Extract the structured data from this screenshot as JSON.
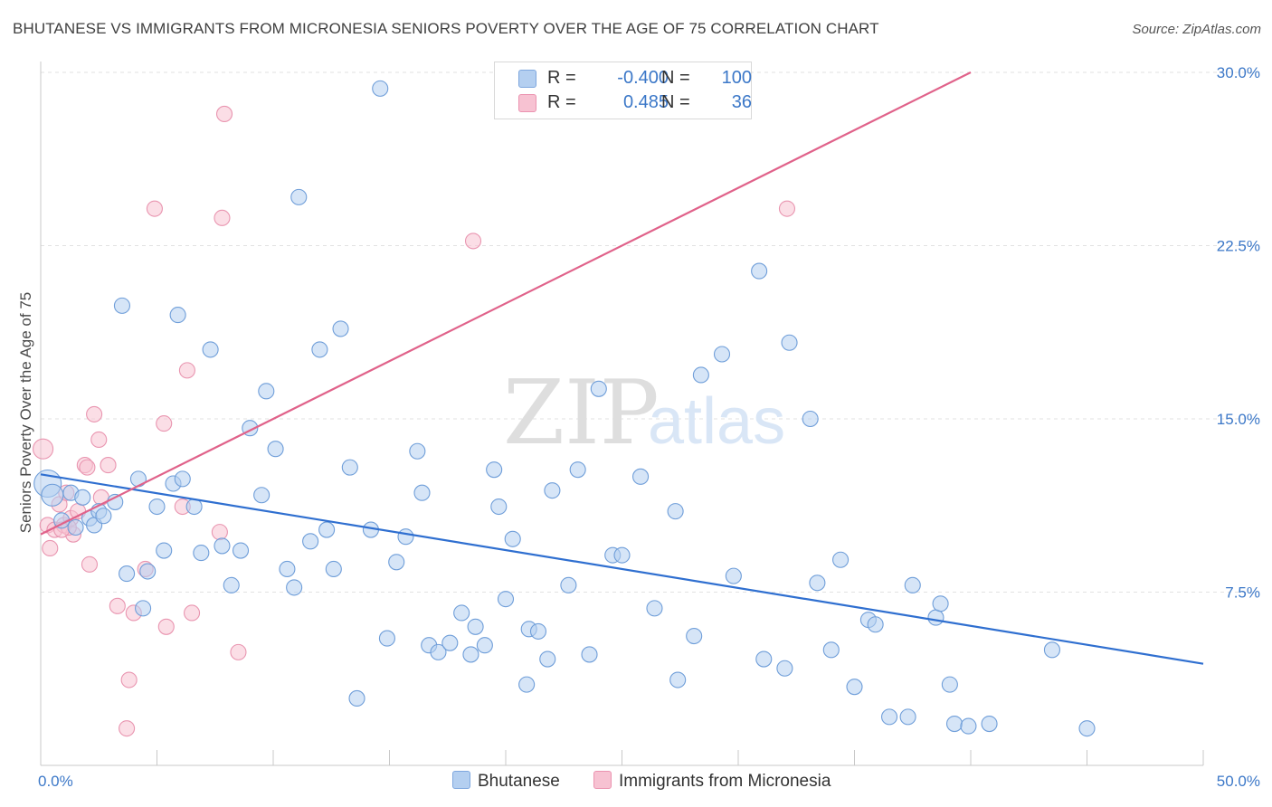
{
  "title": "BHUTANESE VS IMMIGRANTS FROM MICRONESIA SENIORS POVERTY OVER THE AGE OF 75 CORRELATION CHART",
  "source": "Source: ZipAtlas.com",
  "watermark": {
    "zip": "ZIP",
    "atlas": "atlas"
  },
  "colors": {
    "blue": "#3c78d8",
    "blue_fill": "#b4cff0",
    "pink": "#e0628a",
    "pink_fill": "#f7c2d2",
    "tick": "#3c78c8"
  },
  "legend_top": {
    "rows": [
      {
        "r_label": "R =",
        "r_value": "-0.400",
        "n_label": "N =",
        "n_value": "100"
      },
      {
        "r_label": "R =",
        "r_value": "0.485",
        "n_label": "N =",
        "n_value": "36"
      }
    ]
  },
  "legend_bottom": {
    "series1": "Bhutanese",
    "series2": "Immigrants from Micronesia"
  },
  "chart_data": {
    "type": "scatter",
    "title": "BHUTANESE VS IMMIGRANTS FROM MICRONESIA SENIORS POVERTY OVER THE AGE OF 75 CORRELATION CHART",
    "xlabel": "",
    "ylabel": "Seniors Poverty Over the Age of 75",
    "xlim": [
      0,
      50
    ],
    "ylim": [
      0,
      30
    ],
    "x_tick_labels": [
      "0.0%",
      "50.0%"
    ],
    "y_ticks": [
      7.5,
      15.0,
      22.5,
      30.0
    ],
    "y_tick_labels": [
      "7.5%",
      "15.0%",
      "22.5%",
      "30.0%"
    ],
    "grid": "horizontal dashed",
    "legend_placement": "top-center and bottom",
    "series": [
      {
        "name": "Bhutanese",
        "color": "#3c78d8",
        "R": -0.4,
        "N": 100,
        "trend": {
          "x": [
            0,
            50
          ],
          "y": [
            12.6,
            4.4
          ]
        },
        "points": [
          [
            0.3,
            12.2
          ],
          [
            0.5,
            11.7
          ],
          [
            0.9,
            10.6
          ],
          [
            1.3,
            11.8
          ],
          [
            1.5,
            10.3
          ],
          [
            1.8,
            11.6
          ],
          [
            2.1,
            10.7
          ],
          [
            2.3,
            10.4
          ],
          [
            2.5,
            11.0
          ],
          [
            2.7,
            10.8
          ],
          [
            3.2,
            11.4
          ],
          [
            3.5,
            19.9
          ],
          [
            3.7,
            8.3
          ],
          [
            4.2,
            12.4
          ],
          [
            4.4,
            6.8
          ],
          [
            4.6,
            8.4
          ],
          [
            5.0,
            11.2
          ],
          [
            5.3,
            9.3
          ],
          [
            5.7,
            12.2
          ],
          [
            5.9,
            19.5
          ],
          [
            6.1,
            12.4
          ],
          [
            6.6,
            11.2
          ],
          [
            6.9,
            9.2
          ],
          [
            7.3,
            18.0
          ],
          [
            7.8,
            9.5
          ],
          [
            8.2,
            7.8
          ],
          [
            8.6,
            9.3
          ],
          [
            9.0,
            14.6
          ],
          [
            9.5,
            11.7
          ],
          [
            9.7,
            16.2
          ],
          [
            10.1,
            13.7
          ],
          [
            10.6,
            8.5
          ],
          [
            10.9,
            7.7
          ],
          [
            11.1,
            24.6
          ],
          [
            11.6,
            9.7
          ],
          [
            12.0,
            18.0
          ],
          [
            12.3,
            10.2
          ],
          [
            12.6,
            8.5
          ],
          [
            12.9,
            18.9
          ],
          [
            13.3,
            12.9
          ],
          [
            13.6,
            2.9
          ],
          [
            14.2,
            10.2
          ],
          [
            14.6,
            29.3
          ],
          [
            14.9,
            5.5
          ],
          [
            15.3,
            8.8
          ],
          [
            15.7,
            9.9
          ],
          [
            16.2,
            13.6
          ],
          [
            16.4,
            11.8
          ],
          [
            16.7,
            5.2
          ],
          [
            17.1,
            4.9
          ],
          [
            17.6,
            5.3
          ],
          [
            18.1,
            6.6
          ],
          [
            18.5,
            4.8
          ],
          [
            18.7,
            6.0
          ],
          [
            19.1,
            5.2
          ],
          [
            19.5,
            12.8
          ],
          [
            19.7,
            11.2
          ],
          [
            20.0,
            7.2
          ],
          [
            20.3,
            9.8
          ],
          [
            20.9,
            3.5
          ],
          [
            21.0,
            5.9
          ],
          [
            21.4,
            5.8
          ],
          [
            21.8,
            4.6
          ],
          [
            22.0,
            11.9
          ],
          [
            22.7,
            7.8
          ],
          [
            23.1,
            12.8
          ],
          [
            23.6,
            4.8
          ],
          [
            24.0,
            16.3
          ],
          [
            24.6,
            9.1
          ],
          [
            25.0,
            9.1
          ],
          [
            25.8,
            12.5
          ],
          [
            26.4,
            6.8
          ],
          [
            27.3,
            11.0
          ],
          [
            27.4,
            3.7
          ],
          [
            28.1,
            5.6
          ],
          [
            28.4,
            16.9
          ],
          [
            29.3,
            17.8
          ],
          [
            29.8,
            8.2
          ],
          [
            30.9,
            21.4
          ],
          [
            31.1,
            4.6
          ],
          [
            32.0,
            4.2
          ],
          [
            32.2,
            18.3
          ],
          [
            33.1,
            15.0
          ],
          [
            33.4,
            7.9
          ],
          [
            34.0,
            5.0
          ],
          [
            34.4,
            8.9
          ],
          [
            35.0,
            3.4
          ],
          [
            35.6,
            6.3
          ],
          [
            35.9,
            6.1
          ],
          [
            36.5,
            2.1
          ],
          [
            37.3,
            2.1
          ],
          [
            37.5,
            7.8
          ],
          [
            38.5,
            6.4
          ],
          [
            38.7,
            7.0
          ],
          [
            39.1,
            3.5
          ],
          [
            39.3,
            1.8
          ],
          [
            39.9,
            1.7
          ],
          [
            40.8,
            1.8
          ],
          [
            43.5,
            5.0
          ],
          [
            45.0,
            1.6
          ]
        ]
      },
      {
        "name": "Immigrants from Micronesia",
        "color": "#e0628a",
        "R": 0.485,
        "N": 36,
        "trend": {
          "x": [
            0,
            40
          ],
          "y": [
            10.0,
            30.0
          ]
        },
        "points": [
          [
            0.1,
            13.7
          ],
          [
            0.3,
            10.4
          ],
          [
            0.4,
            9.4
          ],
          [
            0.6,
            10.2
          ],
          [
            0.8,
            11.3
          ],
          [
            1.0,
            10.4
          ],
          [
            1.1,
            11.8
          ],
          [
            1.3,
            10.7
          ],
          [
            1.4,
            10.0
          ],
          [
            1.6,
            11.0
          ],
          [
            1.9,
            13.0
          ],
          [
            2.0,
            12.9
          ],
          [
            2.1,
            8.7
          ],
          [
            2.3,
            15.2
          ],
          [
            2.5,
            14.1
          ],
          [
            2.6,
            11.6
          ],
          [
            2.9,
            13.0
          ],
          [
            3.3,
            6.9
          ],
          [
            3.7,
            1.6
          ],
          [
            3.8,
            3.7
          ],
          [
            4.0,
            6.6
          ],
          [
            4.5,
            8.5
          ],
          [
            4.9,
            24.1
          ],
          [
            5.3,
            14.8
          ],
          [
            5.4,
            6.0
          ],
          [
            6.1,
            11.2
          ],
          [
            6.3,
            17.1
          ],
          [
            6.5,
            6.6
          ],
          [
            7.7,
            10.1
          ],
          [
            7.8,
            23.7
          ],
          [
            7.9,
            28.2
          ],
          [
            8.5,
            4.9
          ],
          [
            18.6,
            22.7
          ],
          [
            32.1,
            24.1
          ],
          [
            1.2,
            10.3
          ],
          [
            0.9,
            10.2
          ]
        ]
      }
    ]
  }
}
